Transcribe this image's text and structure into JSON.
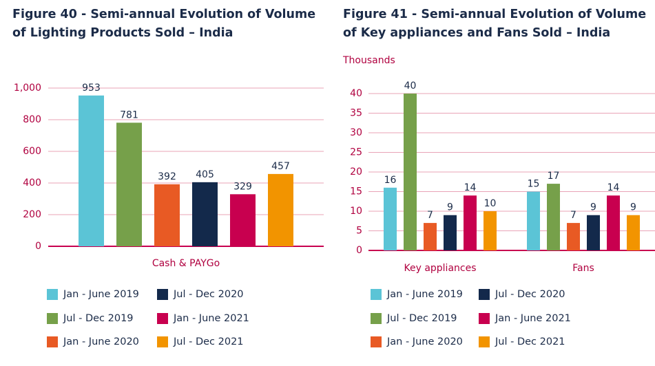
{
  "chart_data": [
    {
      "type": "bar",
      "title": "Figure 40 - Semi-annual Evolution of Volume of Lighting Products Sold – India",
      "categories": [
        "Cash & PAYGo"
      ],
      "series": [
        {
          "name": "Jan - June 2019",
          "color": "#5bc4d6",
          "values": [
            953
          ]
        },
        {
          "name": "Jul - Dec 2019",
          "color": "#76a04a",
          "values": [
            781
          ]
        },
        {
          "name": "Jan - June 2020",
          "color": "#e85a24",
          "values": [
            392
          ]
        },
        {
          "name": "Jul - Dec 2020",
          "color": "#13294b",
          "values": [
            405
          ]
        },
        {
          "name": "Jan - June 2021",
          "color": "#c8004f",
          "values": [
            329
          ]
        },
        {
          "name": "Jul - Dec 2021",
          "color": "#f29400",
          "values": [
            457
          ]
        }
      ],
      "ylim": [
        0,
        1000
      ],
      "yticks": [
        0,
        200,
        400,
        600,
        800,
        {
          "value": 1000,
          "label": "1,000"
        }
      ],
      "grid": true
    },
    {
      "type": "bar",
      "title": "Figure 41 - Semi-annual Evolution of Volume of Key appliances and Fans Sold – India",
      "y_label": "Thousands",
      "categories": [
        "Key appliances",
        "Fans"
      ],
      "series": [
        {
          "name": "Jan - June 2019",
          "color": "#5bc4d6",
          "values": [
            16,
            15
          ]
        },
        {
          "name": "Jul - Dec 2019",
          "color": "#76a04a",
          "values": [
            40,
            17
          ]
        },
        {
          "name": "Jan - June 2020",
          "color": "#e85a24",
          "values": [
            7,
            7
          ]
        },
        {
          "name": "Jul - Dec 2020",
          "color": "#13294b",
          "values": [
            9,
            9
          ]
        },
        {
          "name": "Jan - June 2021",
          "color": "#c8004f",
          "values": [
            14,
            14
          ]
        },
        {
          "name": "Jul - Dec 2021",
          "color": "#f29400",
          "values": [
            10,
            9
          ]
        }
      ],
      "ylim": [
        0,
        40
      ],
      "yticks": [
        0,
        5,
        10,
        15,
        20,
        25,
        30,
        35,
        40
      ],
      "grid": true
    }
  ]
}
